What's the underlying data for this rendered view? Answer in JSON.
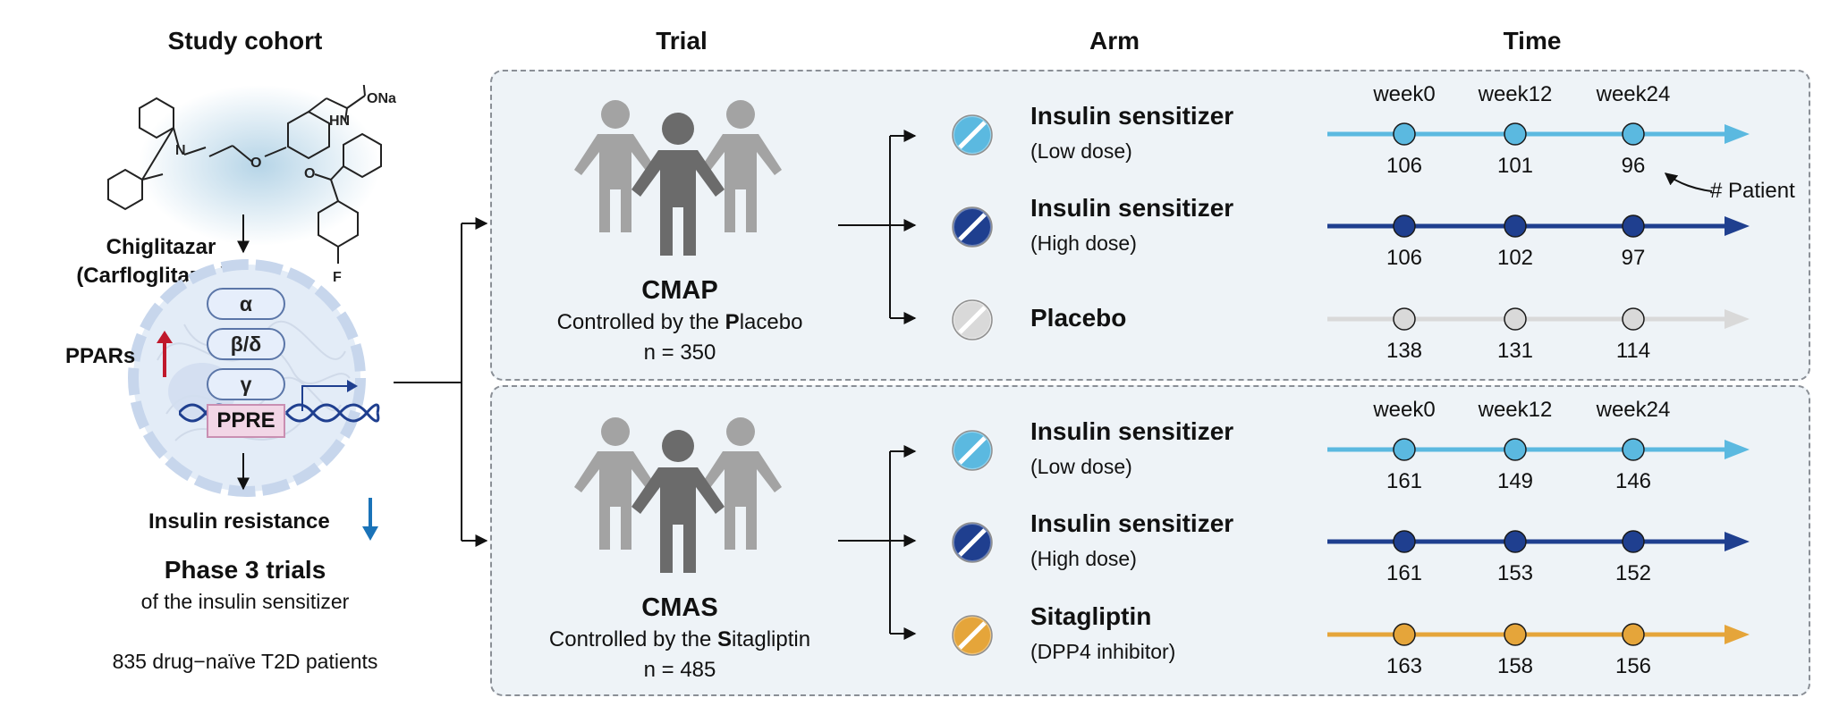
{
  "headers": {
    "study_cohort": "Study cohort",
    "trial": "Trial",
    "arm": "Arm",
    "time": "Time"
  },
  "cohort": {
    "drug_name": "Chiglitazar",
    "drug_alt": "(Carfloglitazar)",
    "receptors": [
      "α",
      "β/δ",
      "γ"
    ],
    "ppre": "PPRE",
    "ppars_label": "PPARs",
    "insulin_resistance": "Insulin resistance",
    "phase_title": "Phase 3 trials",
    "phase_sub": "of the insulin sensitizer",
    "patients": "835 drug−naïve T2D patients",
    "molecule_labels": {
      "o_top": "O",
      "ona": "ONa",
      "hn": "HN",
      "o_left": "O",
      "n": "N",
      "o_ketone": "O",
      "f": "F"
    }
  },
  "colors": {
    "low_dose": "#5bb9e0",
    "high_dose": "#1f3f8f",
    "placebo": "#d9d9d9",
    "sitagliptin": "#e5a53a",
    "up_arrow": "#c0182b",
    "down_arrow": "#1a73b8",
    "panel_bg": "#eef3f7"
  },
  "weeks": [
    "week0",
    "week12",
    "week24"
  ],
  "patient_note": "# Patient",
  "trials": [
    {
      "name": "CMAP",
      "sub_prefix": "Controlled by the ",
      "sub_bold": "P",
      "sub_rest": "lacebo",
      "n": "n = 350",
      "arms": [
        {
          "title": "Insulin sensitizer",
          "sub": "(Low dose)",
          "pill": "low-dose-pill-icon",
          "counts": [
            "106",
            "101",
            "96"
          ]
        },
        {
          "title": "Insulin sensitizer",
          "sub": "(High dose)",
          "pill": "high-dose-pill-icon",
          "counts": [
            "106",
            "102",
            "97"
          ]
        },
        {
          "title": "Placebo",
          "sub": "",
          "pill": "placebo-pill-icon",
          "counts": [
            "138",
            "131",
            "114"
          ]
        }
      ]
    },
    {
      "name": "CMAS",
      "sub_prefix": "Controlled by the ",
      "sub_bold": "S",
      "sub_rest": "itagliptin",
      "n": "n = 485",
      "arms": [
        {
          "title": "Insulin sensitizer",
          "sub": "(Low dose)",
          "pill": "low-dose-pill-icon",
          "counts": [
            "161",
            "149",
            "146"
          ]
        },
        {
          "title": "Insulin sensitizer",
          "sub": "(High dose)",
          "pill": "high-dose-pill-icon",
          "counts": [
            "161",
            "153",
            "152"
          ]
        },
        {
          "title": "Sitagliptin",
          "sub": "(DPP4 inhibitor)",
          "pill": "sitagliptin-pill-icon",
          "counts": [
            "163",
            "158",
            "156"
          ]
        }
      ]
    }
  ]
}
